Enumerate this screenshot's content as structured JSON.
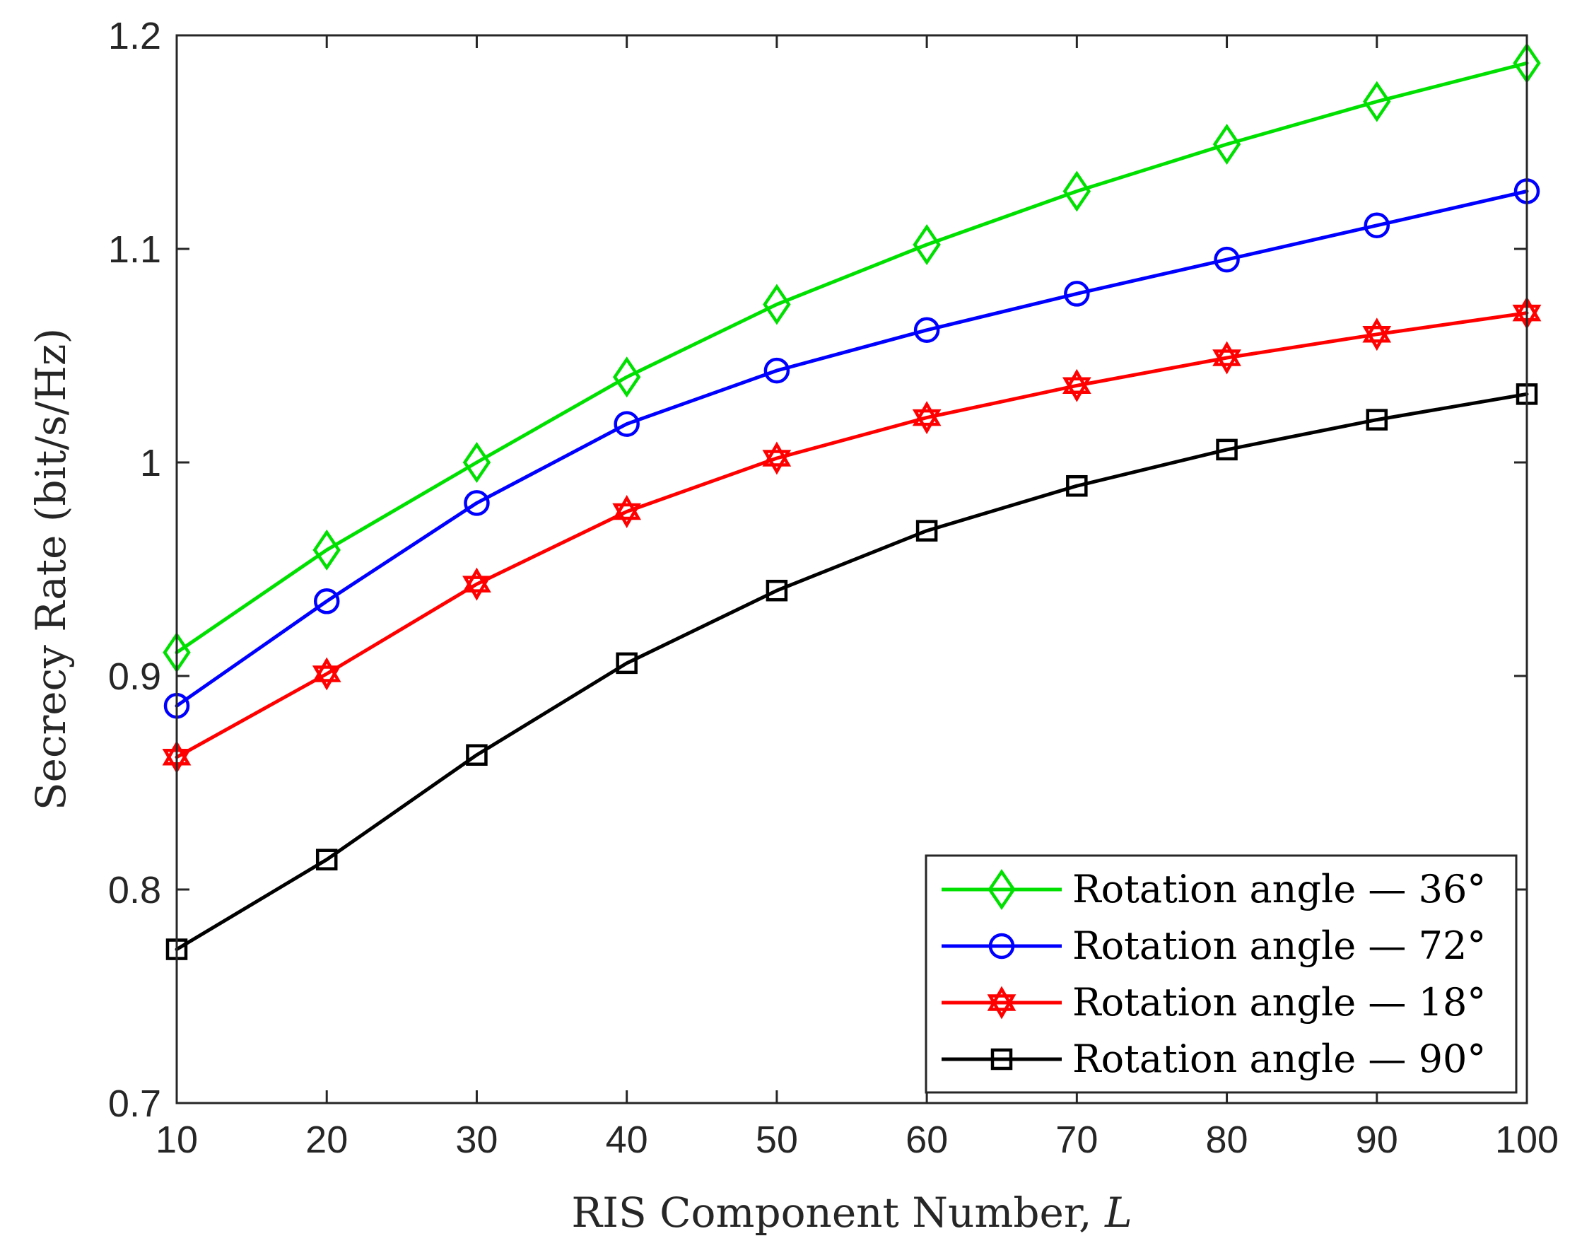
{
  "chart_data": {
    "type": "line",
    "title": "",
    "xlabel": "RIS Component Number, ",
    "xlabel_var": "L",
    "ylabel": "Secrecy Rate (bit/s/Hz)",
    "xlim": [
      10,
      100
    ],
    "ylim": [
      0.7,
      1.2
    ],
    "grid": false,
    "legend_position": "bottom-right",
    "x": [
      10,
      20,
      30,
      40,
      50,
      60,
      70,
      80,
      90,
      100
    ],
    "xticks": [
      10,
      20,
      30,
      40,
      50,
      60,
      70,
      80,
      90,
      100
    ],
    "xtick_labels": [
      "10",
      "20",
      "30",
      "40",
      "50",
      "60",
      "70",
      "80",
      "90",
      "100"
    ],
    "yticks": [
      0.7,
      0.8,
      0.9,
      1.0,
      1.1,
      1.2
    ],
    "ytick_labels": [
      "0.7",
      "0.8",
      "0.9",
      "1",
      "1.1",
      "1.2"
    ],
    "series": [
      {
        "name": "Rotation angle — 36°",
        "color": "#00e000",
        "marker": "diamond",
        "values": [
          0.911,
          0.959,
          1.0,
          1.04,
          1.074,
          1.102,
          1.127,
          1.149,
          1.169,
          1.187
        ]
      },
      {
        "name": "Rotation angle — 72°",
        "color": "#0000ff",
        "marker": "circle",
        "values": [
          0.886,
          0.935,
          0.981,
          1.018,
          1.043,
          1.062,
          1.079,
          1.095,
          1.111,
          1.127
        ]
      },
      {
        "name": "Rotation angle — 18°",
        "color": "#ff0000",
        "marker": "hexagram",
        "values": [
          0.862,
          0.901,
          0.943,
          0.977,
          1.002,
          1.021,
          1.036,
          1.049,
          1.06,
          1.07
        ]
      },
      {
        "name": "Rotation angle — 90°",
        "color": "#000000",
        "marker": "square",
        "values": [
          0.772,
          0.814,
          0.863,
          0.906,
          0.94,
          0.968,
          0.989,
          1.006,
          1.02,
          1.032
        ]
      }
    ]
  }
}
